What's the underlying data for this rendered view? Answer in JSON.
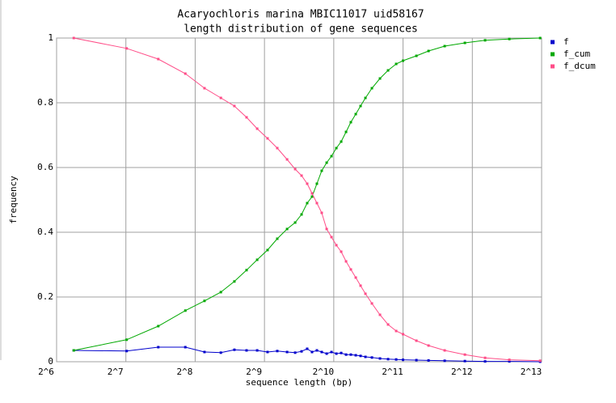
{
  "chart_data": {
    "type": "line",
    "title": "Acaryochloris marina MBIC11017 uid58167",
    "subtitle": "length distribution of gene sequences",
    "xlabel": "sequence length (bp)",
    "ylabel": "frequency",
    "xlog": true,
    "grid": true,
    "legend": "right",
    "xlim": [
      64,
      8192
    ],
    "ylim": [
      0,
      1
    ],
    "xticks": [
      {
        "value": 64,
        "label": "2^6"
      },
      {
        "value": 128,
        "label": "2^7"
      },
      {
        "value": 256,
        "label": "2^8"
      },
      {
        "value": 512,
        "label": "2^9"
      },
      {
        "value": 1024,
        "label": "2^10"
      },
      {
        "value": 2048,
        "label": "2^11"
      },
      {
        "value": 4096,
        "label": "2^12"
      },
      {
        "value": 8192,
        "label": "2^13"
      }
    ],
    "yticks": [
      0,
      0.2,
      0.4,
      0.6,
      0.8,
      1
    ],
    "x": [
      76,
      129,
      177,
      232,
      281,
      331,
      379,
      428,
      476,
      528,
      582,
      642,
      696,
      742,
      785,
      824,
      865,
      908,
      954,
      1001,
      1051,
      1103,
      1158,
      1215,
      1276,
      1339,
      1406,
      1500,
      1626,
      1763,
      1912,
      2048,
      2341,
      2643,
      3106,
      3802,
      4654,
      5931,
      8070
    ],
    "series": [
      {
        "name": "f",
        "color": "#0000cc",
        "values": [
          0.035,
          0.033,
          0.045,
          0.045,
          0.03,
          0.028,
          0.037,
          0.035,
          0.035,
          0.03,
          0.033,
          0.03,
          0.028,
          0.032,
          0.04,
          0.03,
          0.035,
          0.03,
          0.025,
          0.03,
          0.025,
          0.027,
          0.022,
          0.022,
          0.02,
          0.018,
          0.015,
          0.013,
          0.01,
          0.008,
          0.007,
          0.006,
          0.005,
          0.004,
          0.003,
          0.002,
          0.001,
          0.001,
          0
        ]
      },
      {
        "name": "f_cum",
        "color": "#00a800",
        "values": [
          0.035,
          0.068,
          0.11,
          0.158,
          0.188,
          0.215,
          0.248,
          0.283,
          0.315,
          0.345,
          0.38,
          0.41,
          0.43,
          0.455,
          0.49,
          0.51,
          0.55,
          0.59,
          0.615,
          0.635,
          0.66,
          0.68,
          0.71,
          0.74,
          0.765,
          0.79,
          0.815,
          0.845,
          0.875,
          0.9,
          0.92,
          0.93,
          0.945,
          0.96,
          0.975,
          0.985,
          0.993,
          0.997,
          1
        ]
      },
      {
        "name": "f_dcum",
        "color": "#ff4d88",
        "values": [
          1,
          0.968,
          0.935,
          0.89,
          0.845,
          0.815,
          0.79,
          0.755,
          0.72,
          0.69,
          0.66,
          0.625,
          0.595,
          0.575,
          0.55,
          0.52,
          0.49,
          0.46,
          0.41,
          0.385,
          0.36,
          0.34,
          0.31,
          0.285,
          0.26,
          0.235,
          0.21,
          0.18,
          0.145,
          0.115,
          0.095,
          0.085,
          0.065,
          0.05,
          0.035,
          0.022,
          0.012,
          0.006,
          0.003
        ]
      }
    ]
  }
}
